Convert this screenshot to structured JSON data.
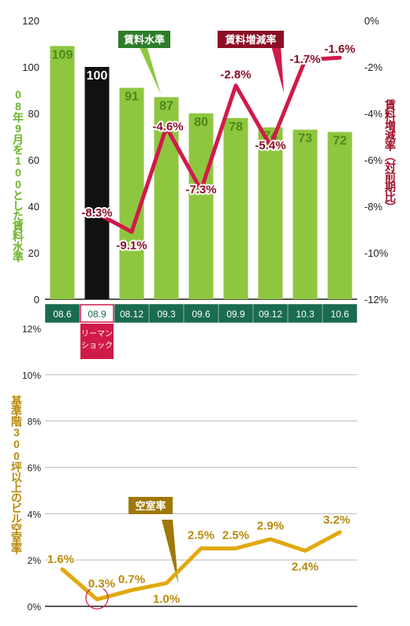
{
  "chart_data": [
    {
      "type": "bar",
      "categories": [
        "08.6",
        "08.9",
        "08.12",
        "09.3",
        "09.6",
        "09.9",
        "09.12",
        "10.3",
        "10.6"
      ],
      "series": [
        {
          "name": "賃料水準",
          "values": [
            109,
            100,
            91,
            87,
            80,
            78,
            74,
            73,
            72
          ],
          "color": "#8fc63f",
          "highlight_color": "#111111",
          "highlight_index": 1
        },
        {
          "name": "賃料増減率",
          "values": [
            null,
            -8.3,
            -9.1,
            -4.6,
            -7.3,
            -2.8,
            -5.4,
            -1.7,
            -1.6
          ],
          "color": "#d01a4a",
          "type": "line"
        }
      ],
      "data_labels_bar": [
        "109",
        "100",
        "91",
        "87",
        "80",
        "78",
        "74",
        "73",
        "72"
      ],
      "data_labels_line": [
        "",
        "-8.3%",
        "-9.1%",
        "-4.6%",
        "-7.3%",
        "-2.8%",
        "-5.4%",
        "-1.7%",
        "-1.6%"
      ],
      "ylabel": "08年9月を100とした賃料水準",
      "ylabel_right": "賃料増減率（対前期比）",
      "ylim": [
        0,
        120
      ],
      "yticks": [
        "0",
        "20",
        "40",
        "60",
        "80",
        "100",
        "120"
      ],
      "ylim_right": [
        -12,
        0
      ],
      "yticks_right": [
        "0%",
        "-2%",
        "-4%",
        "-6%",
        "-8%",
        "-10%",
        "-12%"
      ],
      "callouts": {
        "bar": "賃料水準",
        "line": "賃料増減率"
      },
      "annotation": "リーマン ショック",
      "grid": false,
      "colors": {
        "category_box": "#1a6b4f",
        "annotation": "#d01a4a",
        "bar_label": "#4a8a1a",
        "line_label": "#8a0e26"
      }
    },
    {
      "type": "line",
      "x": [
        "08.6",
        "08.9",
        "08.12",
        "09.3",
        "09.6",
        "09.9",
        "09.12",
        "10.3",
        "10.6"
      ],
      "series": [
        {
          "name": "空室率",
          "values": [
            1.6,
            0.3,
            0.7,
            1.0,
            2.5,
            2.5,
            2.9,
            2.4,
            3.2
          ],
          "color": "#e1a90f"
        }
      ],
      "data_labels": [
        "1.6%",
        "0.3%",
        "0.7%",
        "1.0%",
        "2.5%",
        "2.5%",
        "2.9%",
        "2.4%",
        "3.2%"
      ],
      "ylabel": "基準階300坪以上のビル空室率",
      "ylim": [
        0,
        12
      ],
      "yticks": [
        "0%",
        "2%",
        "4%",
        "6%",
        "8%",
        "10%",
        "12%"
      ],
      "callout": "空室率",
      "highlight_index": 1,
      "grid": true,
      "colors": {
        "callout": "#a07808",
        "label": "#b98a0a",
        "grid": "#bbbbbb"
      }
    }
  ]
}
